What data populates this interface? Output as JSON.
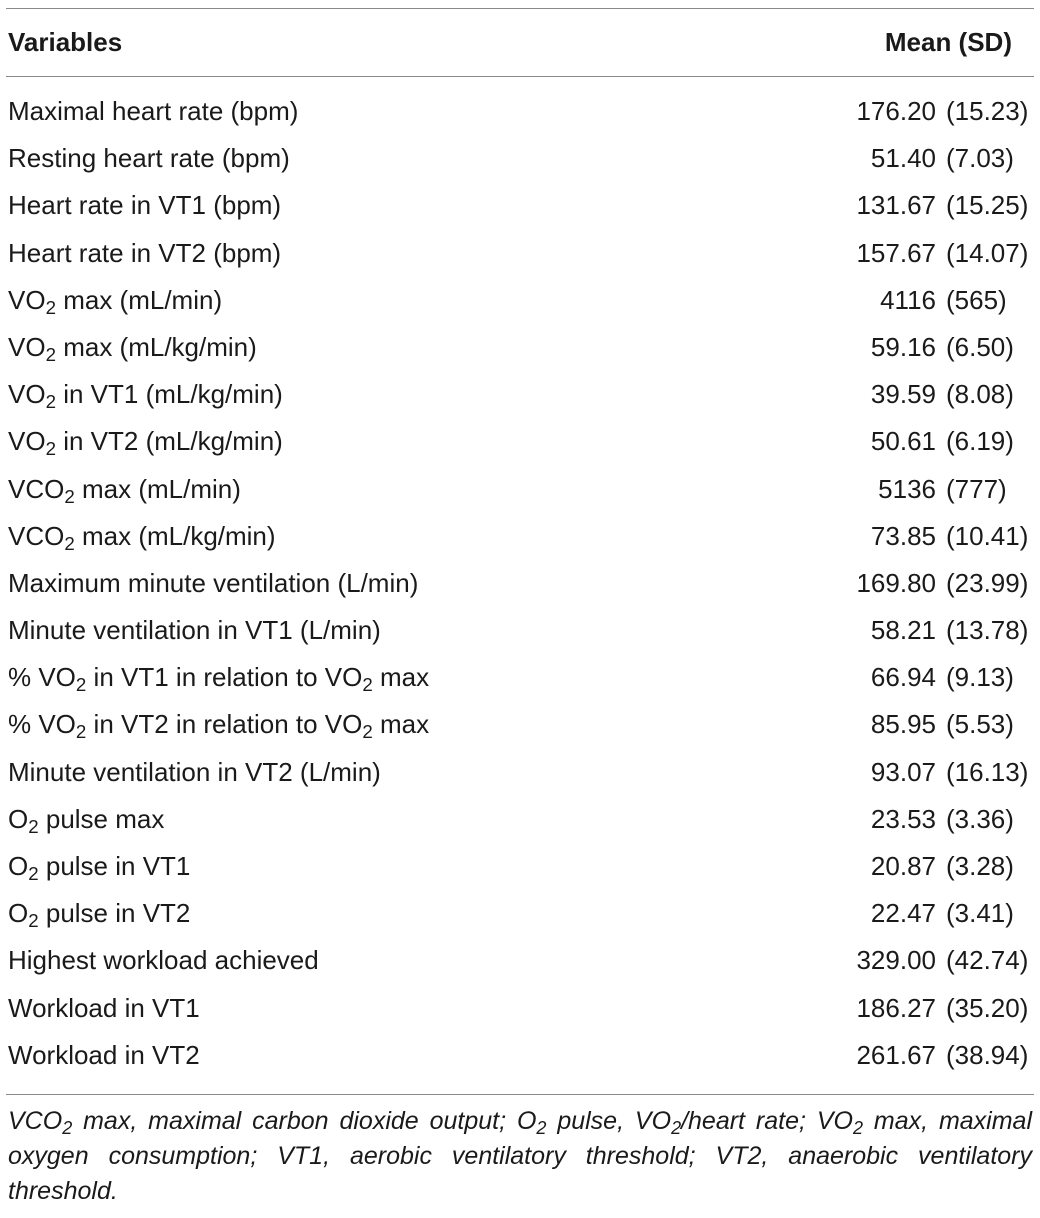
{
  "table": {
    "header": {
      "variables": "Variables",
      "mean_sd": "Mean (SD)"
    },
    "rows": [
      {
        "label": [
          "Maximal heart rate (bpm)"
        ],
        "mean": "176.20",
        "sd": "(15.23)"
      },
      {
        "label": [
          "Resting heart rate (bpm)"
        ],
        "mean": "51.40",
        "sd": "(7.03)"
      },
      {
        "label": [
          "Heart rate in VT1 (bpm)"
        ],
        "mean": "131.67",
        "sd": "(15.25)"
      },
      {
        "label": [
          "Heart rate in VT2 (bpm)"
        ],
        "mean": "157.67",
        "sd": "(14.07)"
      },
      {
        "label": [
          "VO",
          {
            "sub": "2"
          },
          " max (mL/min)"
        ],
        "mean": "4116",
        "sd": "(565)"
      },
      {
        "label": [
          "VO",
          {
            "sub": "2"
          },
          " max (mL/kg/min)"
        ],
        "mean": "59.16",
        "sd": "(6.50)"
      },
      {
        "label": [
          "VO",
          {
            "sub": "2"
          },
          " in VT1 (mL/kg/min)"
        ],
        "mean": "39.59",
        "sd": "(8.08)"
      },
      {
        "label": [
          "VO",
          {
            "sub": "2"
          },
          " in VT2 (mL/kg/min)"
        ],
        "mean": "50.61",
        "sd": "(6.19)"
      },
      {
        "label": [
          "VCO",
          {
            "sub": "2"
          },
          " max (mL/min)"
        ],
        "mean": "5136",
        "sd": "(777)"
      },
      {
        "label": [
          "VCO",
          {
            "sub": "2"
          },
          " max (mL/kg/min)"
        ],
        "mean": "73.85",
        "sd": "(10.41)"
      },
      {
        "label": [
          "Maximum minute ventilation (L/min)"
        ],
        "mean": "169.80",
        "sd": "(23.99)"
      },
      {
        "label": [
          "Minute ventilation in VT1 (L/min)"
        ],
        "mean": "58.21",
        "sd": "(13.78)"
      },
      {
        "label": [
          "% VO",
          {
            "sub": "2"
          },
          " in VT1 in relation to VO",
          {
            "sub": "2"
          },
          " max"
        ],
        "mean": "66.94",
        "sd": "(9.13)"
      },
      {
        "label": [
          "% VO",
          {
            "sub": "2"
          },
          " in VT2 in relation to VO",
          {
            "sub": "2"
          },
          " max"
        ],
        "mean": "85.95",
        "sd": "(5.53)"
      },
      {
        "label": [
          "Minute ventilation in VT2 (L/min)"
        ],
        "mean": "93.07",
        "sd": "(16.13)"
      },
      {
        "label": [
          "O",
          {
            "sub": "2"
          },
          " pulse max"
        ],
        "mean": "23.53",
        "sd": "(3.36)"
      },
      {
        "label": [
          "O",
          {
            "sub": "2"
          },
          " pulse in VT1"
        ],
        "mean": "20.87",
        "sd": "(3.28)"
      },
      {
        "label": [
          "O",
          {
            "sub": "2"
          },
          " pulse in VT2"
        ],
        "mean": "22.47",
        "sd": "(3.41)"
      },
      {
        "label": [
          "Highest workload achieved"
        ],
        "mean": "329.00",
        "sd": "(42.74)"
      },
      {
        "label": [
          "Workload in VT1"
        ],
        "mean": "186.27",
        "sd": "(35.20)"
      },
      {
        "label": [
          "Workload in VT2"
        ],
        "mean": "261.67",
        "sd": "(38.94)"
      }
    ],
    "footnote": [
      "VCO",
      {
        "sub": "2"
      },
      " max, maximal carbon dioxide output; O",
      {
        "sub": "2"
      },
      " pulse, VO",
      {
        "sub": "2"
      },
      "/heart rate; VO",
      {
        "sub": "2"
      },
      " max, maximal oxygen consumption; VT1, aerobic ventilatory threshold; VT2, anaerobic ventilatory threshold."
    ]
  },
  "colors": {
    "text": "#1a1a1a",
    "rule": "#8a8a8a",
    "background": "#ffffff"
  }
}
